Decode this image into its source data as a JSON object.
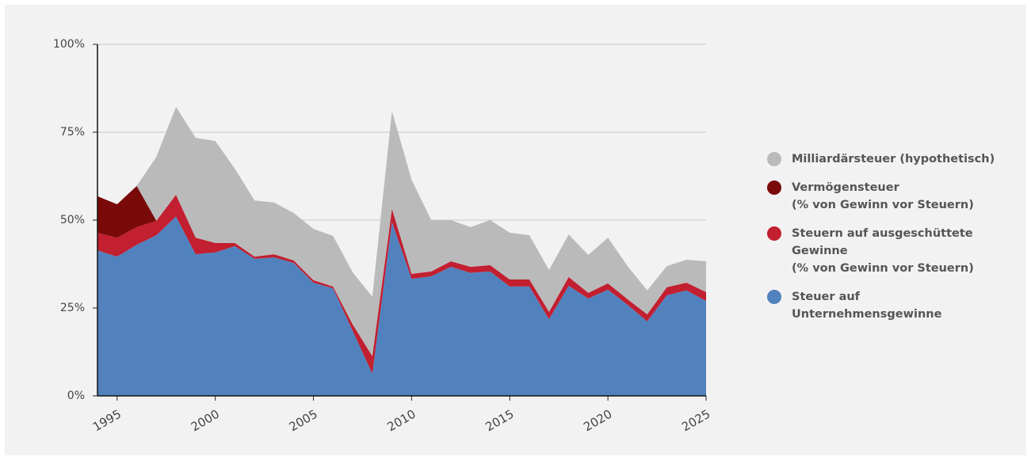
{
  "chart_data": {
    "type": "stacked_area",
    "x": [
      1994,
      1995,
      1996,
      1997,
      1998,
      1999,
      2000,
      2001,
      2002,
      2003,
      2004,
      2005,
      2006,
      2007,
      2008,
      2009,
      2010,
      2011,
      2012,
      2013,
      2014,
      2015,
      2016,
      2017,
      2018,
      2019,
      2020,
      2021,
      2022,
      2023,
      2024,
      2025
    ],
    "series": [
      {
        "name": "Steuer auf\nUnternehmensgewinne",
        "color": "#5182be",
        "values": [
          41.4,
          39.6,
          43,
          45.7,
          51,
          40.3,
          40.8,
          42.6,
          39,
          39.4,
          37.8,
          32.2,
          30.6,
          18.5,
          6.3,
          49.5,
          33.3,
          34,
          36.7,
          35,
          35.4,
          31.1,
          31.1,
          21.8,
          31.3,
          27.7,
          30.2,
          25.9,
          21.2,
          28.6,
          30,
          27
        ]
      },
      {
        "name": "Steuern auf ausgeschüttete\nGewinne\n(% von Gewinn vor Steuern)",
        "color": "#c21f30",
        "values": [
          5,
          5.4,
          5,
          4.1,
          6.2,
          4.7,
          2.7,
          0.9,
          0.6,
          0.9,
          0.7,
          0.7,
          0.5,
          1.8,
          5,
          3.7,
          1.4,
          1.4,
          1.6,
          1.7,
          1.8,
          2,
          2,
          2.1,
          2.5,
          1.6,
          1.8,
          1.6,
          2,
          2.3,
          2.2,
          2.5
        ]
      },
      {
        "name": "Vermögensteuer\n(% von Gewinn vor Steuern)",
        "color": "#7a0a0a",
        "values": [
          10.4,
          9.5,
          11.7,
          0,
          0,
          0,
          0,
          0,
          0,
          0,
          0,
          0,
          0,
          0,
          0,
          0,
          0,
          0,
          0,
          0,
          0,
          0,
          0,
          0,
          0,
          0,
          0,
          0,
          0,
          0,
          0,
          0
        ]
      },
      {
        "name": "Milliardärsteuer (hypothetisch)",
        "color": "#bababa",
        "values": [
          0,
          0,
          0,
          18.2,
          25,
          28.4,
          29,
          21.1,
          16,
          14.7,
          13.5,
          14.6,
          14.4,
          14.8,
          16.9,
          27.8,
          26.8,
          14.6,
          11.7,
          11.3,
          12.8,
          13.3,
          12.6,
          11.9,
          12.1,
          10.8,
          13,
          9.4,
          6.8,
          6,
          6.5,
          8.8
        ]
      }
    ],
    "xlim": [
      1994,
      2025
    ],
    "xticks": [
      1995,
      2000,
      2005,
      2010,
      2015,
      2020,
      2025
    ],
    "ylim": [
      0,
      100
    ],
    "yticks": [
      {
        "value": 0,
        "label": "0%"
      },
      {
        "value": 25,
        "label": "25%"
      },
      {
        "value": 50,
        "label": "50%"
      },
      {
        "value": 75,
        "label": "75%"
      },
      {
        "value": 100,
        "label": "100%"
      }
    ],
    "grid": true,
    "legend": "right"
  }
}
